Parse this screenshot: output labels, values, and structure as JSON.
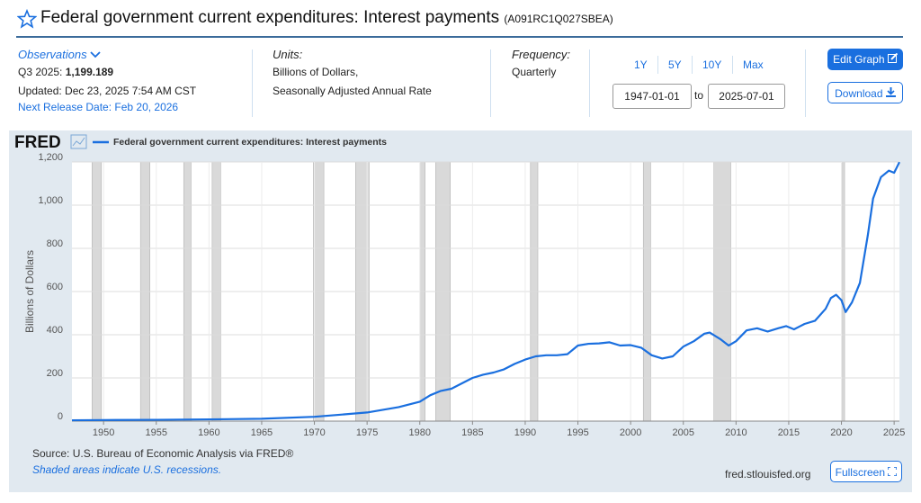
{
  "header": {
    "title": "Federal government current expenditures: Interest payments",
    "series_id": "(A091RC1Q027SBEA)"
  },
  "observations": {
    "label": "Observations",
    "period": "Q3 2025:",
    "value": "1,199.189",
    "updated": "Updated: Dec 23, 2025 7:54 AM CST",
    "next_release": "Next Release Date: Feb 20, 2026"
  },
  "units": {
    "label": "Units:",
    "lines": [
      "Billions of Dollars,",
      "Seasonally Adjusted Annual Rate"
    ]
  },
  "frequency": {
    "label": "Frequency:",
    "value": "Quarterly"
  },
  "range_buttons": [
    "1Y",
    "5Y",
    "10Y",
    "Max"
  ],
  "date_range": {
    "start": "1947-01-01",
    "separator": "to",
    "end": "2025-07-01"
  },
  "buttons": {
    "edit": "Edit Graph",
    "download": "Download",
    "fullscreen": "Fullscreen"
  },
  "chart_data": {
    "type": "line",
    "logo": "FRED",
    "y_label": "Billions of Dollars",
    "x": [
      1947,
      1950,
      1955,
      1960,
      1965,
      1970,
      1975,
      1978,
      1980,
      1981,
      1982,
      1983,
      1984,
      1985,
      1986,
      1987,
      1988,
      1989,
      1990,
      1991,
      1992,
      1993,
      1994,
      1995,
      1996,
      1997,
      1998,
      1999,
      2000,
      2001,
      2002,
      2003,
      2004,
      2005,
      2006,
      2007,
      2007.5,
      2008.5,
      2009.3,
      2010,
      2011,
      2012,
      2013,
      2014,
      2014.75,
      2015.5,
      2016.5,
      2017.5,
      2018.5,
      2019,
      2019.5,
      2020,
      2020.4,
      2021,
      2021.75,
      2022.5,
      2023,
      2023.75,
      2024.5,
      2025,
      2025.5
    ],
    "series": [
      {
        "name": "Federal government current expenditures: Interest payments",
        "color": "#1a6fdf",
        "values": [
          4,
          5,
          6,
          8,
          11,
          20,
          40,
          65,
          90,
          120,
          140,
          150,
          175,
          200,
          215,
          225,
          240,
          265,
          285,
          300,
          305,
          305,
          310,
          350,
          358,
          360,
          365,
          350,
          352,
          340,
          305,
          290,
          300,
          345,
          370,
          405,
          410,
          380,
          350,
          370,
          420,
          430,
          415,
          430,
          440,
          425,
          450,
          465,
          520,
          570,
          585,
          560,
          505,
          550,
          640,
          860,
          1030,
          1130,
          1160,
          1150,
          1199.189
        ]
      }
    ],
    "xlim": [
      1947,
      2025.5
    ],
    "ylim": [
      0,
      1200
    ],
    "xticks": [
      1950,
      1955,
      1960,
      1965,
      1970,
      1975,
      1980,
      1985,
      1990,
      1995,
      2000,
      2005,
      2010,
      2015,
      2020,
      2025
    ],
    "yticks": [
      0,
      200,
      400,
      600,
      800,
      {
        "value": 1000,
        "label": "1,000"
      },
      {
        "value": 1200,
        "label": "1,200"
      }
    ],
    "grid": true,
    "recessions": [
      [
        1948.9,
        1949.8
      ],
      [
        1953.5,
        1954.4
      ],
      [
        1957.6,
        1958.3
      ],
      [
        1960.3,
        1961.1
      ],
      [
        1969.9,
        1970.9
      ],
      [
        1973.9,
        1975.2
      ],
      [
        1980.0,
        1980.5
      ],
      [
        1981.5,
        1982.9
      ],
      [
        1990.5,
        1991.2
      ],
      [
        2001.2,
        2001.9
      ],
      [
        2007.9,
        2009.5
      ],
      [
        2020.1,
        2020.3
      ]
    ],
    "recession_color": "#d9d9d9"
  },
  "footer": {
    "source": "Source: U.S. Bureau of Economic Analysis via FRED®",
    "note": "Shaded areas indicate U.S. recessions.",
    "site": "fred.stlouisfed.org"
  }
}
